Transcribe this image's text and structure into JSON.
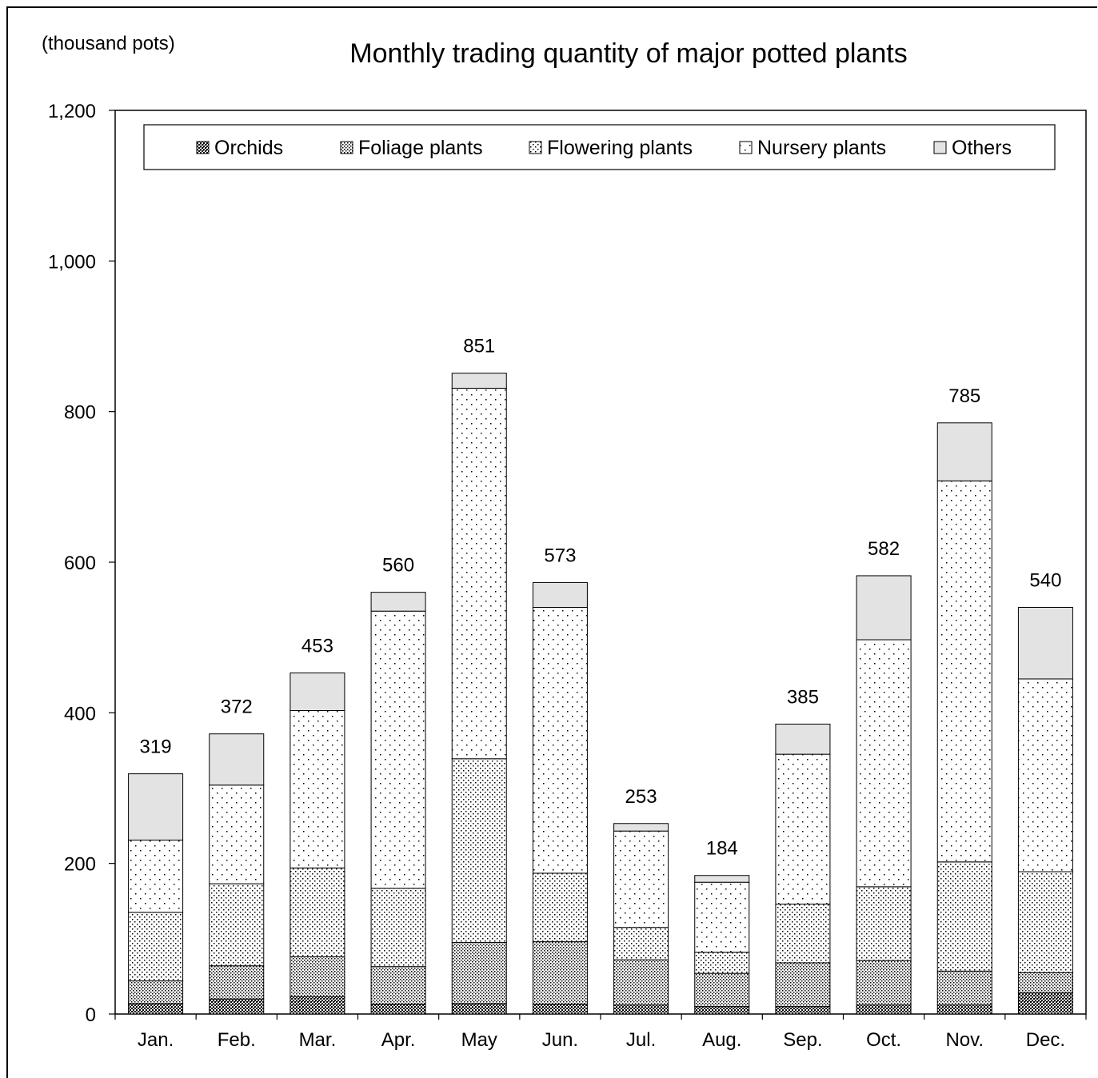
{
  "chart_data": {
    "type": "bar",
    "stacked": true,
    "title": "Monthly trading quantity of major potted plants",
    "unit_label": "(thousand pots)",
    "categories": [
      "Jan.",
      "Feb.",
      "Mar.",
      "Apr.",
      "May",
      "Jun.",
      "Jul.",
      "Aug.",
      "Sep.",
      "Oct.",
      "Nov.",
      "Dec."
    ],
    "ylim": [
      0,
      1200
    ],
    "yticks": [
      0,
      200,
      400,
      600,
      800,
      1000,
      1200
    ],
    "ytick_labels": [
      "0",
      "200",
      "400",
      "600",
      "800",
      "1,000",
      "1,200"
    ],
    "grid": false,
    "legend_position": "top",
    "series": [
      {
        "name": "Orchids",
        "values": [
          14,
          20,
          23,
          13,
          14,
          13,
          12,
          10,
          10,
          12,
          12,
          28
        ],
        "pattern": "dense-cross"
      },
      {
        "name": "Foliage plants",
        "values": [
          30,
          44,
          53,
          50,
          81,
          83,
          60,
          44,
          58,
          59,
          45,
          27
        ],
        "pattern": "dense-dots"
      },
      {
        "name": "Flowering plants",
        "values": [
          91,
          109,
          118,
          104,
          244,
          91,
          43,
          28,
          78,
          98,
          145,
          134
        ],
        "pattern": "medium-dots"
      },
      {
        "name": "Nursery plants",
        "values": [
          96,
          131,
          209,
          368,
          492,
          353,
          128,
          93,
          199,
          328,
          506,
          256
        ],
        "pattern": "sparse-dots"
      },
      {
        "name": "Others",
        "values": [
          88,
          68,
          50,
          25,
          20,
          33,
          10,
          9,
          40,
          85,
          77,
          95
        ],
        "pattern": "gray"
      }
    ],
    "totals": [
      319,
      372,
      453,
      560,
      851,
      573,
      253,
      184,
      385,
      582,
      785,
      540
    ]
  }
}
